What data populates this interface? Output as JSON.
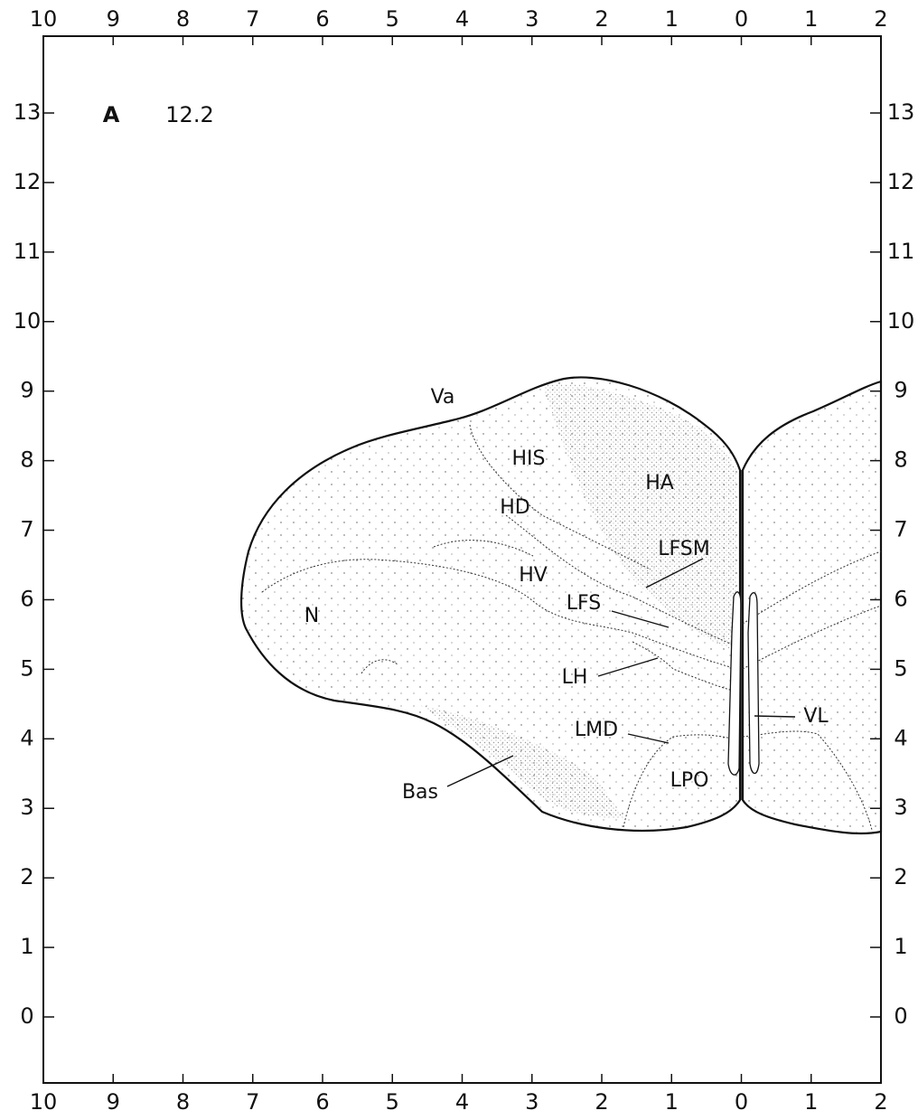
{
  "section": {
    "prefix": "A",
    "level": "12.2"
  },
  "top_axis": [
    "10",
    "9",
    "8",
    "7",
    "6",
    "5",
    "4",
    "3",
    "2",
    "1",
    "0",
    "1",
    "2"
  ],
  "bottom_axis": [
    "10",
    "9",
    "8",
    "7",
    "6",
    "5",
    "4",
    "3",
    "2",
    "1",
    "0",
    "1",
    "2"
  ],
  "left_axis": [
    "13",
    "12",
    "11",
    "10",
    "9",
    "8",
    "7",
    "6",
    "5",
    "4",
    "3",
    "2",
    "1",
    "0"
  ],
  "right_axis": [
    "13",
    "12",
    "11",
    "10",
    "9",
    "8",
    "7",
    "6",
    "5",
    "4",
    "3",
    "2",
    "1",
    "0"
  ],
  "regions": [
    "Va",
    "HIS",
    "HA",
    "HD",
    "LFSM",
    "HV",
    "LFS",
    "N",
    "LH",
    "VL",
    "LMD",
    "LPO",
    "Bas"
  ]
}
